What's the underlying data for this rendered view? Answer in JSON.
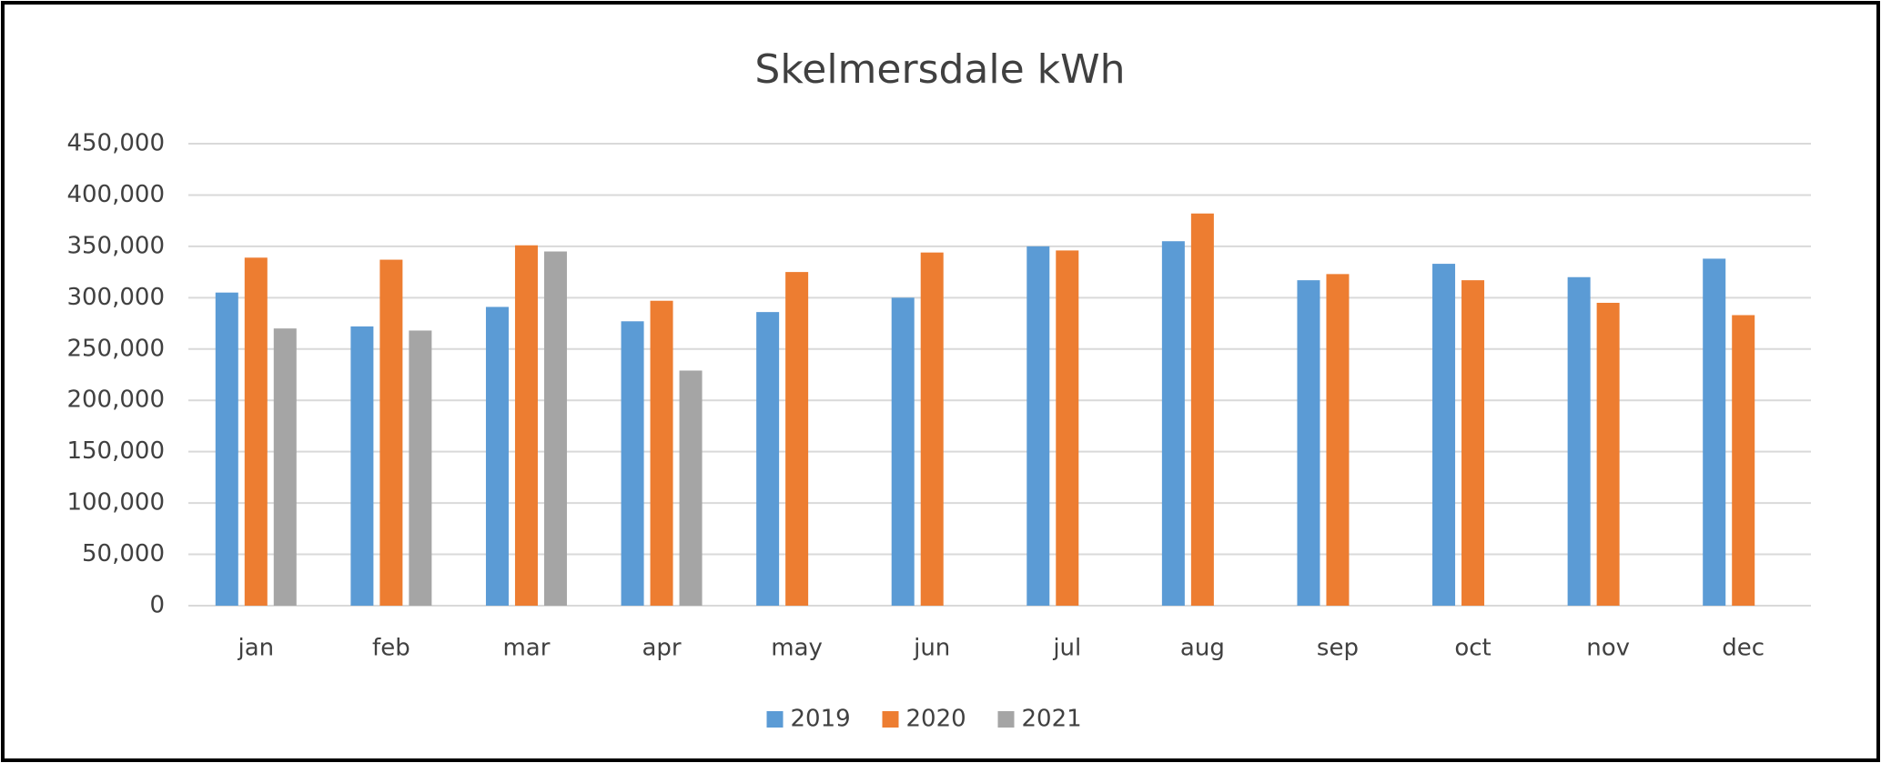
{
  "chart_data": {
    "type": "bar",
    "title": "Skelmersdale kWh",
    "categories": [
      "jan",
      "feb",
      "mar",
      "apr",
      "may",
      "jun",
      "jul",
      "aug",
      "sep",
      "oct",
      "nov",
      "dec"
    ],
    "series": [
      {
        "name": "2019",
        "color": "#5b9bd5",
        "values": [
          305000,
          272000,
          291000,
          277000,
          286000,
          300000,
          350000,
          355000,
          317000,
          333000,
          320000,
          338000
        ]
      },
      {
        "name": "2020",
        "color": "#ed7d31",
        "values": [
          339000,
          337000,
          351000,
          297000,
          325000,
          344000,
          346000,
          382000,
          323000,
          317000,
          295000,
          283000
        ]
      },
      {
        "name": "2021",
        "color": "#a5a5a5",
        "values": [
          270000,
          268000,
          345000,
          229000,
          null,
          null,
          null,
          null,
          null,
          null,
          null,
          null
        ]
      }
    ],
    "ylim": [
      0,
      450000
    ],
    "yticks": [
      0,
      {
        "value": 50000,
        "label": "50,000"
      },
      {
        "value": 100000,
        "label": "100,000"
      },
      {
        "value": 150000,
        "label": "150,000"
      },
      {
        "value": 200000,
        "label": "200,000"
      },
      {
        "value": 250000,
        "label": "250,000"
      },
      {
        "value": 300000,
        "label": "300,000"
      },
      {
        "value": 350000,
        "label": "350,000"
      },
      {
        "value": 400000,
        "label": "400,000"
      },
      {
        "value": 450000,
        "label": "450,000"
      }
    ],
    "grid": true,
    "legend": "bottom"
  }
}
